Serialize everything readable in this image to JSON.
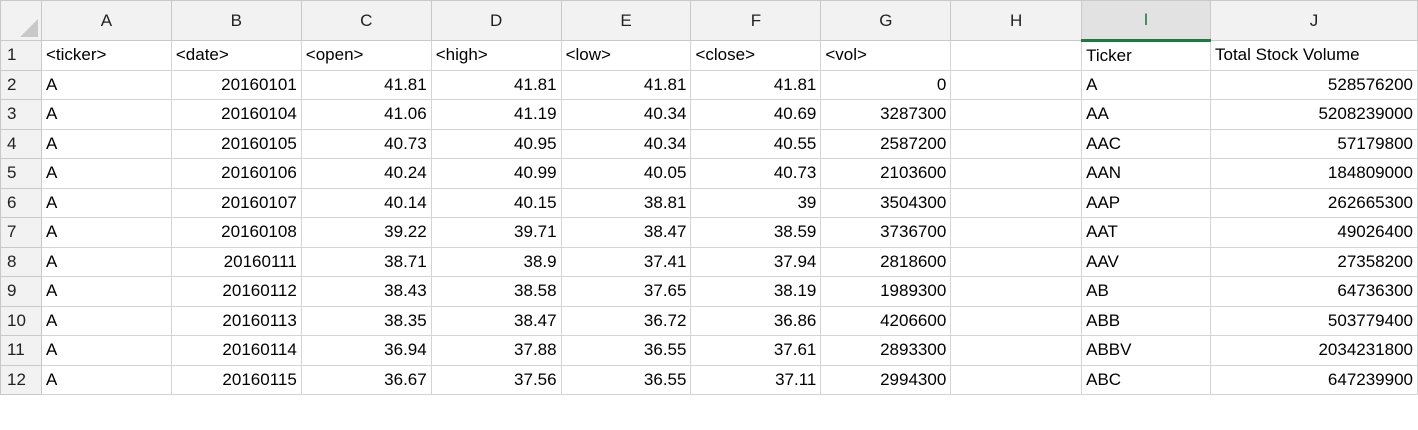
{
  "columns": [
    "A",
    "B",
    "C",
    "D",
    "E",
    "F",
    "G",
    "H",
    "I",
    "J"
  ],
  "selected_column": "I",
  "colors": {
    "selected_accent": "#1f7a3f",
    "header_bg": "#f2f2f2",
    "grid_line": "#d4d4d4"
  },
  "rows": [
    {
      "n": "1",
      "cells": [
        "<ticker>",
        "<date>",
        "<open>",
        "<high>",
        "<low>",
        "<close>",
        "<vol>",
        "",
        "Ticker",
        "Total Stock Volume"
      ]
    },
    {
      "n": "2",
      "cells": [
        "A",
        "20160101",
        "41.81",
        "41.81",
        "41.81",
        "41.81",
        "0",
        "",
        "A",
        "528576200"
      ]
    },
    {
      "n": "3",
      "cells": [
        "A",
        "20160104",
        "41.06",
        "41.19",
        "40.34",
        "40.69",
        "3287300",
        "",
        "AA",
        "5208239000"
      ]
    },
    {
      "n": "4",
      "cells": [
        "A",
        "20160105",
        "40.73",
        "40.95",
        "40.34",
        "40.55",
        "2587200",
        "",
        "AAC",
        "57179800"
      ]
    },
    {
      "n": "5",
      "cells": [
        "A",
        "20160106",
        "40.24",
        "40.99",
        "40.05",
        "40.73",
        "2103600",
        "",
        "AAN",
        "184809000"
      ]
    },
    {
      "n": "6",
      "cells": [
        "A",
        "20160107",
        "40.14",
        "40.15",
        "38.81",
        "39",
        "3504300",
        "",
        "AAP",
        "262665300"
      ]
    },
    {
      "n": "7",
      "cells": [
        "A",
        "20160108",
        "39.22",
        "39.71",
        "38.47",
        "38.59",
        "3736700",
        "",
        "AAT",
        "49026400"
      ]
    },
    {
      "n": "8",
      "cells": [
        "A",
        "20160111",
        "38.71",
        "38.9",
        "37.41",
        "37.94",
        "2818600",
        "",
        "AAV",
        "27358200"
      ]
    },
    {
      "n": "9",
      "cells": [
        "A",
        "20160112",
        "38.43",
        "38.58",
        "37.65",
        "38.19",
        "1989300",
        "",
        "AB",
        "64736300"
      ]
    },
    {
      "n": "10",
      "cells": [
        "A",
        "20160113",
        "38.35",
        "38.47",
        "36.72",
        "36.86",
        "4206600",
        "",
        "ABB",
        "503779400"
      ]
    },
    {
      "n": "11",
      "cells": [
        "A",
        "20160114",
        "36.94",
        "37.88",
        "36.55",
        "37.61",
        "2893300",
        "",
        "ABBV",
        "2034231800"
      ]
    },
    {
      "n": "12",
      "cells": [
        "A",
        "20160115",
        "36.67",
        "37.56",
        "36.55",
        "37.11",
        "2994300",
        "",
        "ABC",
        "647239900"
      ]
    }
  ]
}
